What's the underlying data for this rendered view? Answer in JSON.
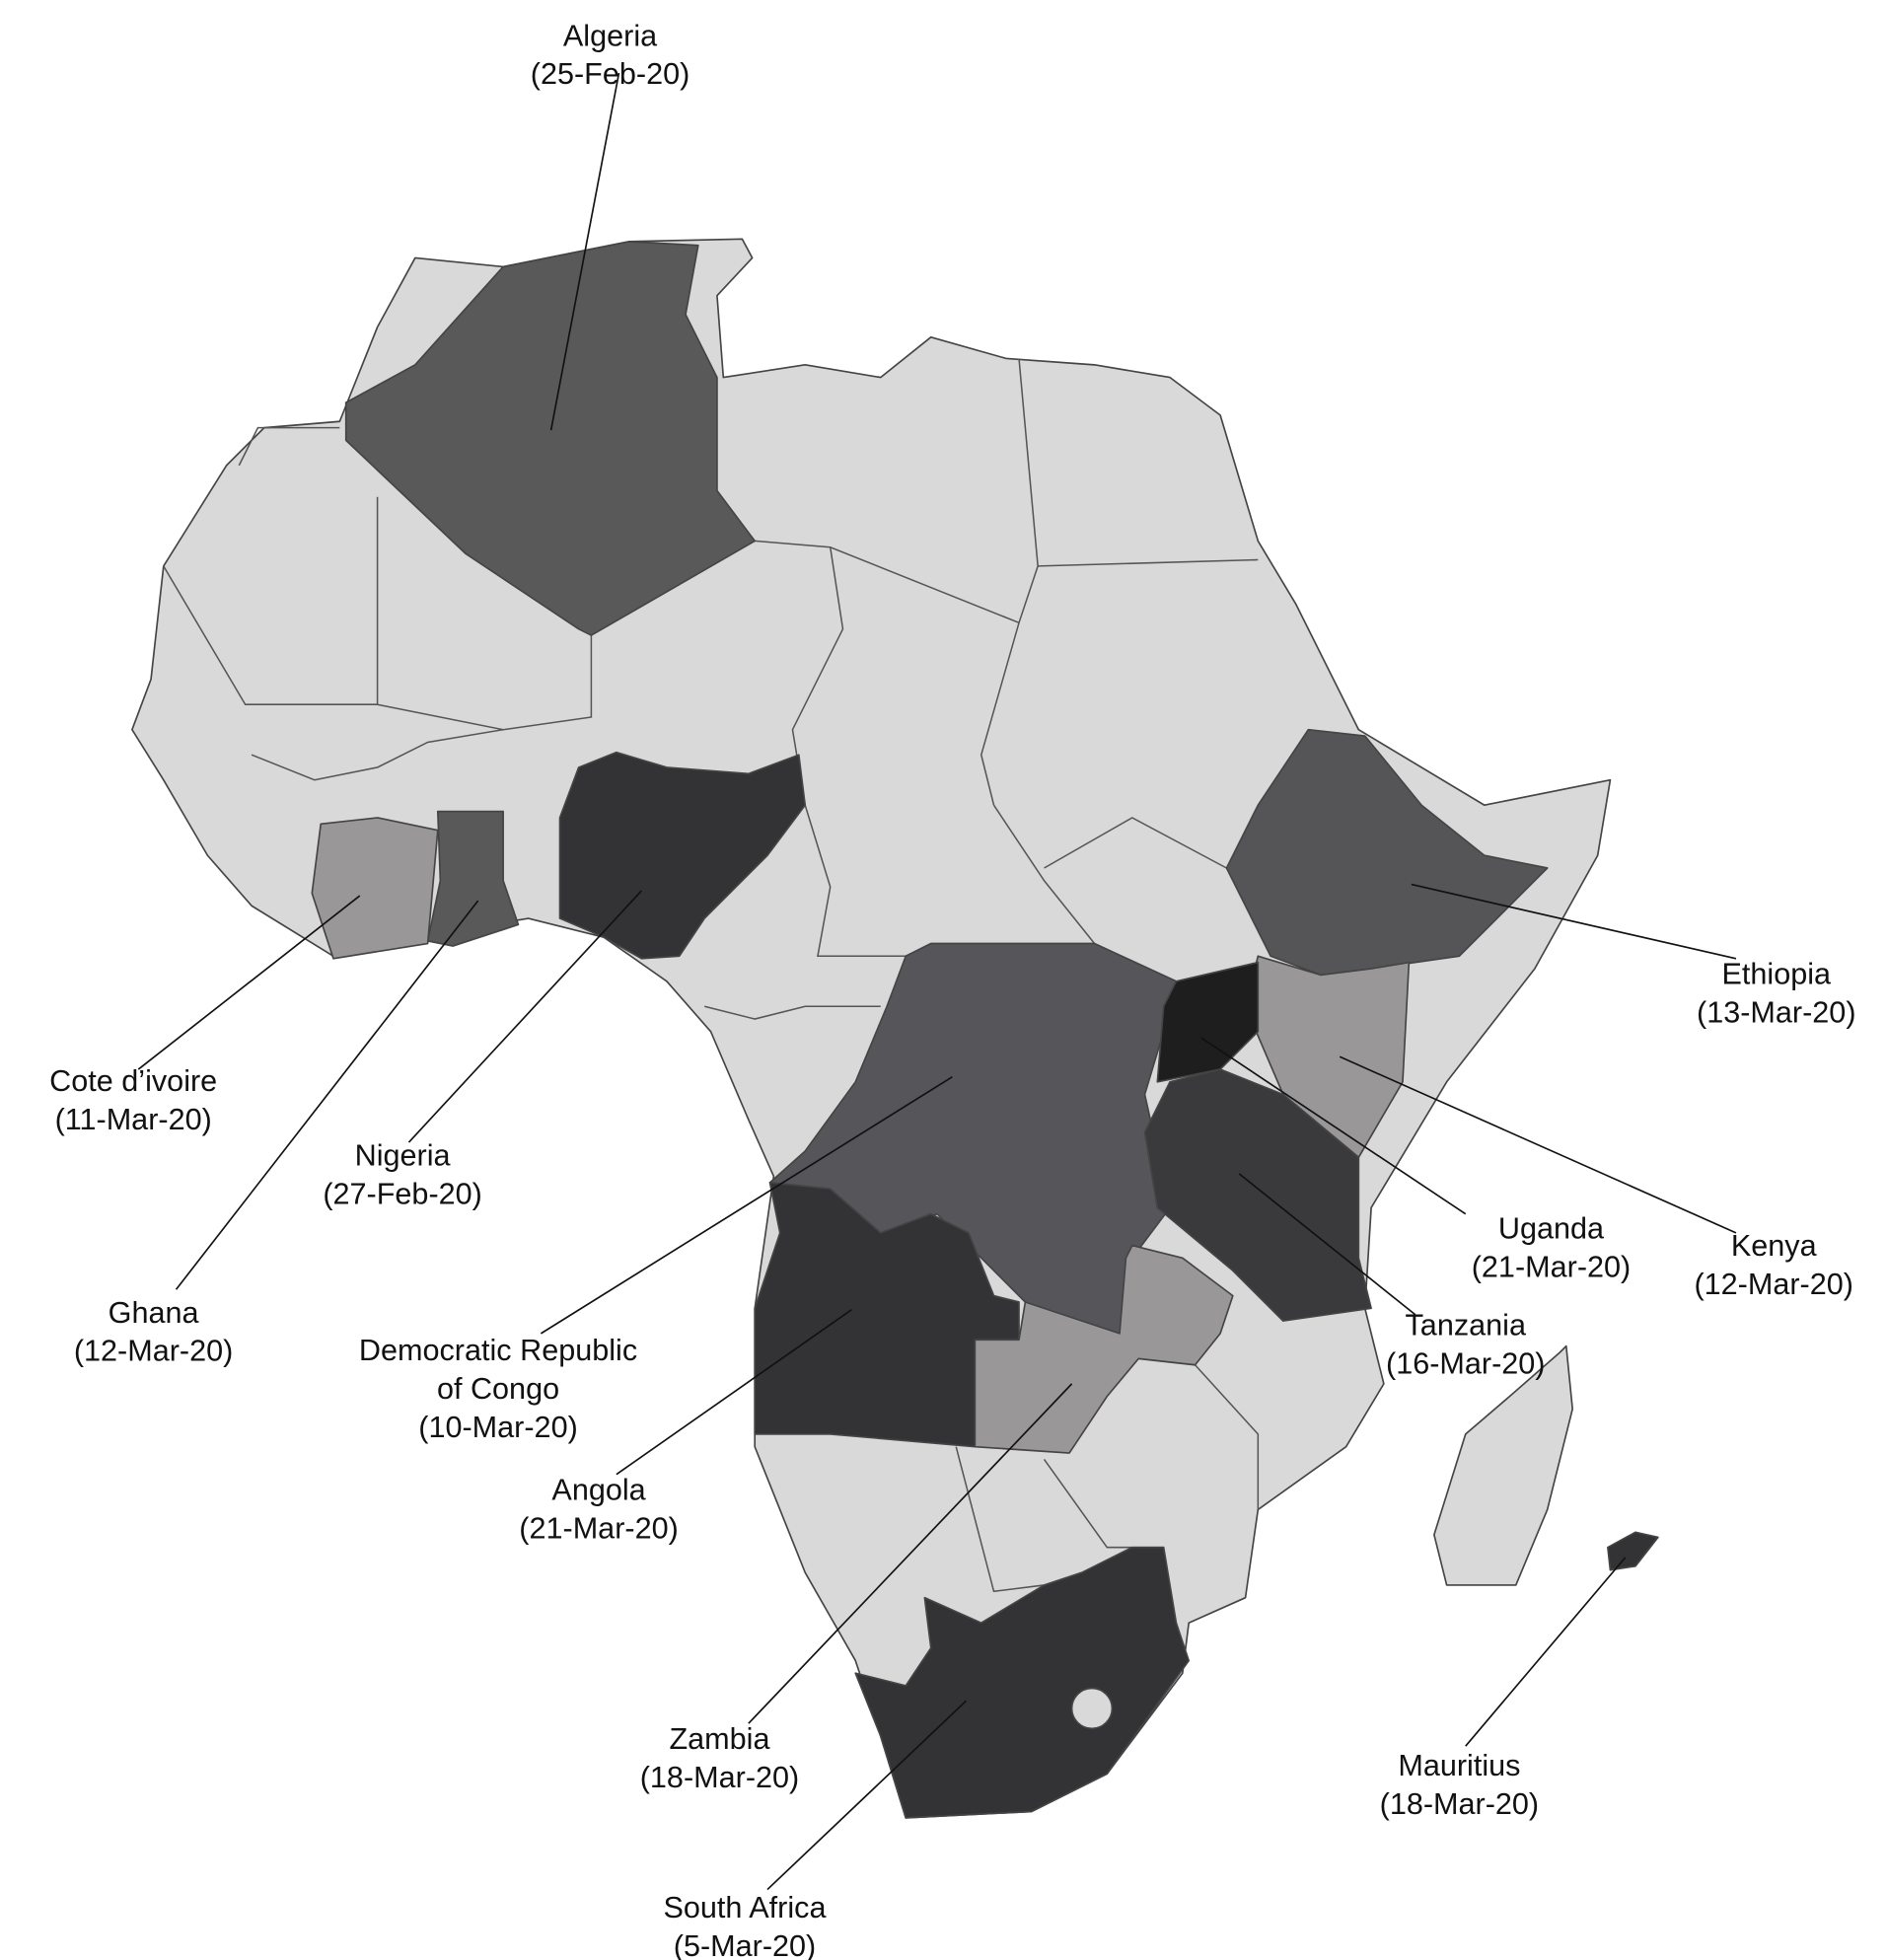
{
  "labels": [
    {
      "lines": [
        "Algeria",
        "(25-Feb-20)"
      ]
    },
    {
      "lines": [
        "Ethiopia",
        "(13-Mar-20)"
      ]
    },
    {
      "lines": [
        "Cote d’ivoire",
        "(11-Mar-20)"
      ]
    },
    {
      "lines": [
        "Nigeria",
        "(27-Feb-20)"
      ]
    },
    {
      "lines": [
        "Uganda",
        "(21-Mar-20)"
      ]
    },
    {
      "lines": [
        "Kenya",
        "(12-Mar-20)"
      ]
    },
    {
      "lines": [
        "Ghana",
        "(12-Mar-20)"
      ]
    },
    {
      "lines": [
        "Democratic Republic",
        "of Congo",
        "(10-Mar-20)"
      ]
    },
    {
      "lines": [
        "Tanzania",
        "(16-Mar-20)"
      ]
    },
    {
      "lines": [
        "Angola",
        "(21-Mar-20)"
      ]
    },
    {
      "lines": [
        "Zambia",
        "(18-Mar-20)"
      ]
    },
    {
      "lines": [
        "Mauritius",
        "(18-Mar-20)"
      ]
    },
    {
      "lines": [
        "South Africa",
        "(5-Mar-20)"
      ]
    }
  ]
}
